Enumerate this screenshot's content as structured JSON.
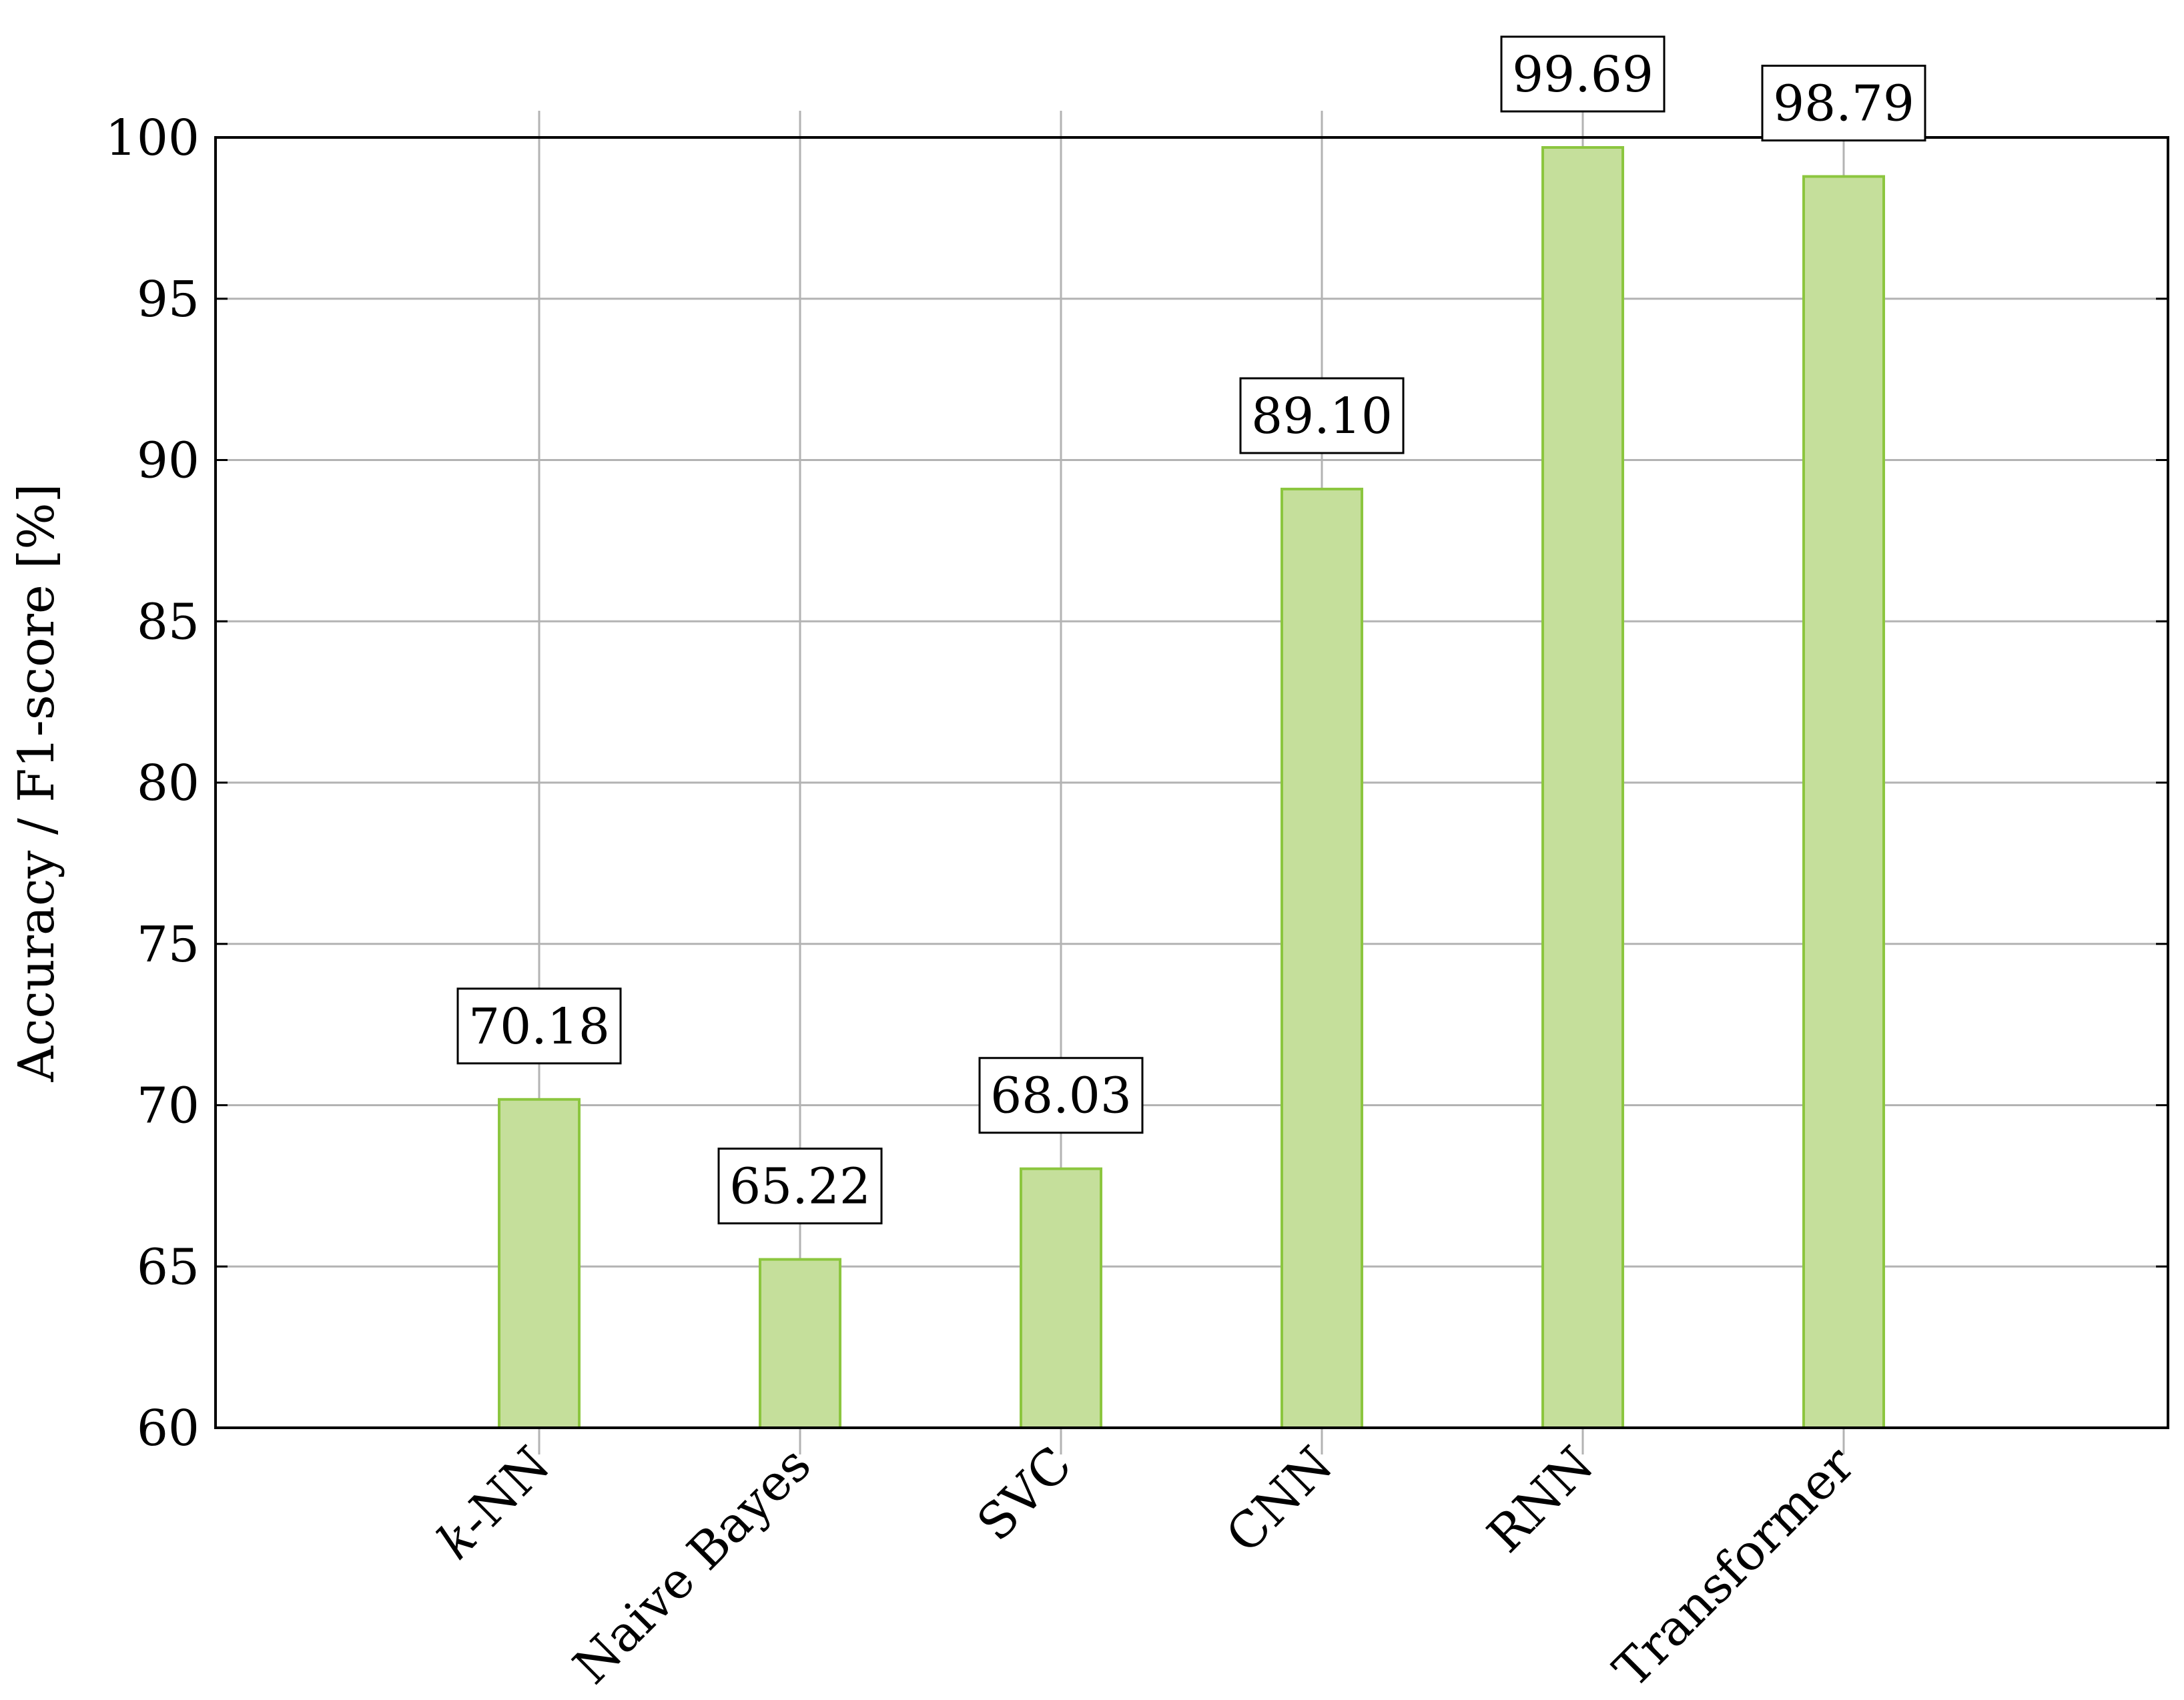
{
  "chart_data": {
    "type": "bar",
    "title": "",
    "xlabel": "",
    "ylabel": "Accuracy / F1-score [%]",
    "categories": [
      "k-NN",
      "Naive Bayes",
      "SVC",
      "CNN",
      "RNN",
      "Transformer"
    ],
    "values": [
      70.18,
      65.22,
      68.03,
      89.1,
      99.69,
      98.79
    ],
    "value_labels": [
      "70.18",
      "65.22",
      "68.03",
      "89.10",
      "99.69",
      "98.79"
    ],
    "ylim": [
      60,
      100
    ],
    "yticks": [
      "60",
      "65",
      "70",
      "75",
      "80",
      "85",
      "90",
      "95",
      "100"
    ],
    "grid": true,
    "legend": "none",
    "colors": {
      "bar_fill": "#c5df9b",
      "bar_stroke": "#8cc63f",
      "grid": "#b3b3b3",
      "axis": "#000000"
    }
  }
}
